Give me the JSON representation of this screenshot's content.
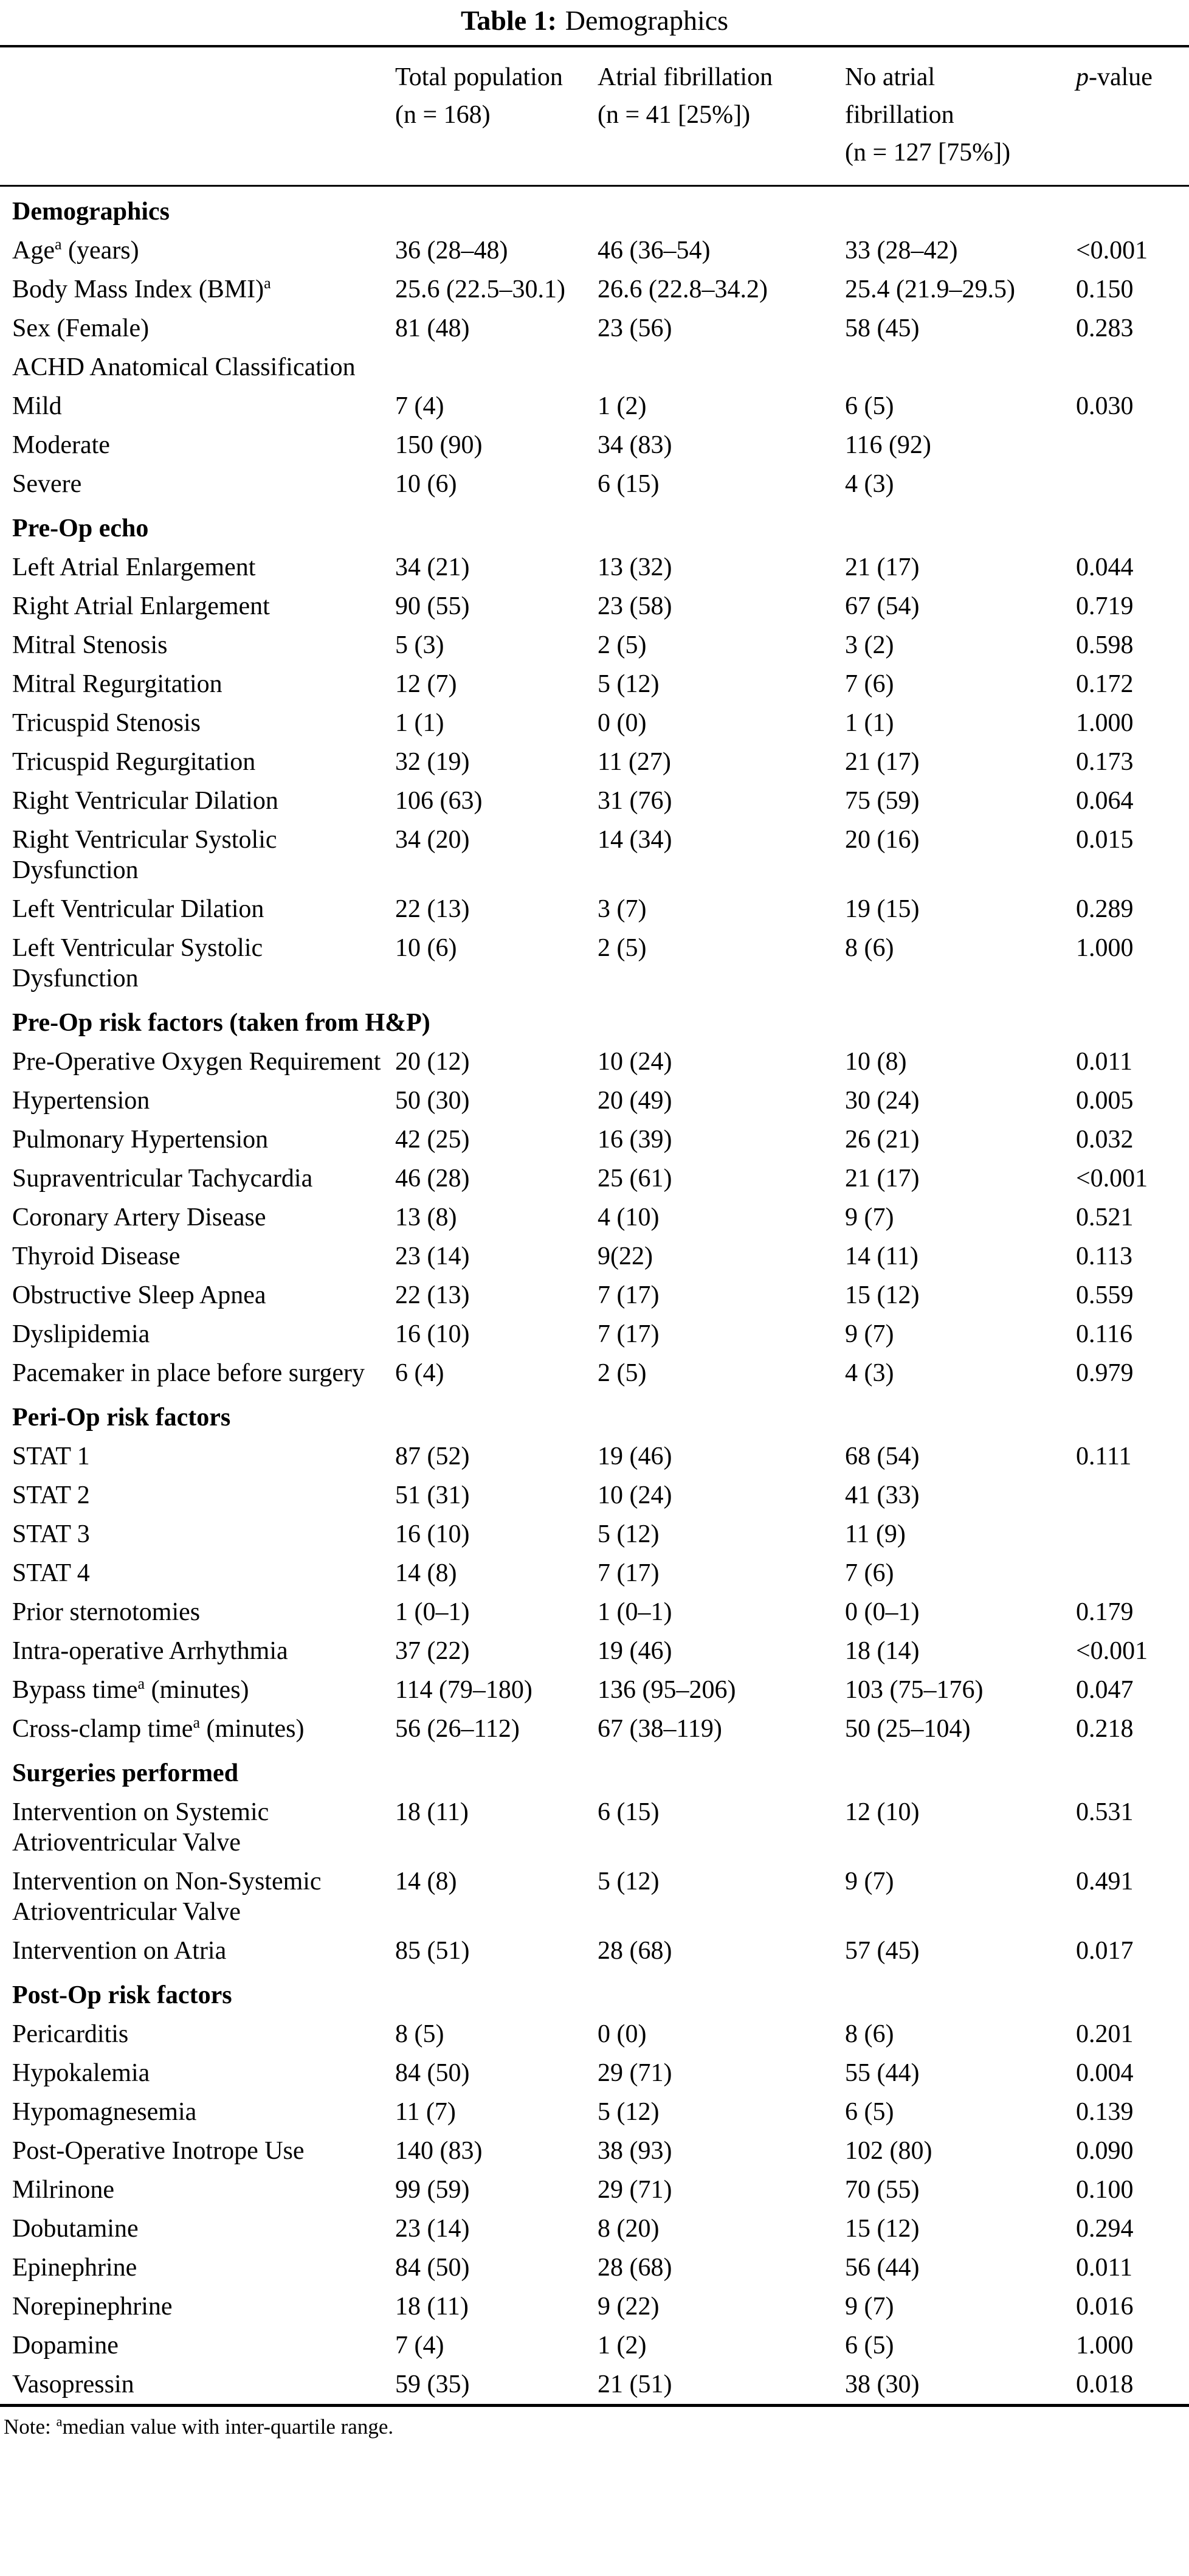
{
  "title": {
    "bold": "Table 1:",
    "rest": "Demographics"
  },
  "header": {
    "label_col": "",
    "total": [
      "Total population",
      "(n = 168)"
    ],
    "af": [
      "Atrial fibrillation",
      "(n = 41 [25%])"
    ],
    "no_af": [
      "No atrial",
      "fibrillation",
      "(n = 127 [75%])"
    ],
    "pvalue": {
      "italic": "p",
      "rest": "-value"
    }
  },
  "rows": [
    {
      "type": "section",
      "label": "Demographics"
    },
    {
      "type": "data",
      "label": "Age",
      "sup": "a",
      "label_post": " (years)",
      "values": [
        "36 (28–48)",
        "46 (36–54)",
        "33 (28–42)",
        "<0.001"
      ]
    },
    {
      "type": "data",
      "label": "Body Mass Index (BMI)",
      "sup": "a",
      "label_post": "",
      "values": [
        "25.6 (22.5–30.1)",
        "26.6 (22.8–34.2)",
        "25.4 (21.9–29.5)",
        "0.150"
      ]
    },
    {
      "type": "data",
      "label": "Sex (Female)",
      "values": [
        "81 (48)",
        "23 (56)",
        "58 (45)",
        "0.283"
      ]
    },
    {
      "type": "data",
      "label": "ACHD Anatomical Classification",
      "values": [
        "",
        "",
        "",
        ""
      ]
    },
    {
      "type": "data",
      "label": "Mild",
      "values": [
        "7 (4)",
        "1 (2)",
        "6 (5)",
        "0.030"
      ]
    },
    {
      "type": "data",
      "label": "Moderate",
      "values": [
        "150 (90)",
        "34 (83)",
        "116 (92)",
        ""
      ]
    },
    {
      "type": "data",
      "label": "Severe",
      "values": [
        "10 (6)",
        "6 (15)",
        "4 (3)",
        ""
      ]
    },
    {
      "type": "section",
      "label": "Pre-Op echo"
    },
    {
      "type": "data",
      "label": "Left Atrial Enlargement",
      "values": [
        "34 (21)",
        "13 (32)",
        "21 (17)",
        "0.044"
      ]
    },
    {
      "type": "data",
      "label": "Right Atrial Enlargement",
      "values": [
        "90 (55)",
        "23 (58)",
        "67 (54)",
        "0.719"
      ]
    },
    {
      "type": "data",
      "label": "Mitral Stenosis",
      "values": [
        "5 (3)",
        "2 (5)",
        "3 (2)",
        "0.598"
      ]
    },
    {
      "type": "data",
      "label": "Mitral Regurgitation",
      "values": [
        "12 (7)",
        "5 (12)",
        "7 (6)",
        "0.172"
      ]
    },
    {
      "type": "data",
      "label": "Tricuspid Stenosis",
      "values": [
        "1 (1)",
        "0 (0)",
        "1 (1)",
        "1.000"
      ]
    },
    {
      "type": "data",
      "label": "Tricuspid Regurgitation",
      "values": [
        "32 (19)",
        "11 (27)",
        "21 (17)",
        "0.173"
      ]
    },
    {
      "type": "data",
      "label": "Right Ventricular Dilation",
      "values": [
        "106 (63)",
        "31 (76)",
        "75 (59)",
        "0.064"
      ]
    },
    {
      "type": "data",
      "label": "Right Ventricular Systolic Dysfunction",
      "values": [
        "34 (20)",
        "14 (34)",
        "20 (16)",
        "0.015"
      ]
    },
    {
      "type": "data",
      "label": "Left Ventricular Dilation",
      "values": [
        "22 (13)",
        "3 (7)",
        "19 (15)",
        "0.289"
      ]
    },
    {
      "type": "data",
      "label": "Left Ventricular Systolic Dysfunction",
      "values": [
        "10 (6)",
        "2 (5)",
        "8 (6)",
        "1.000"
      ]
    },
    {
      "type": "section",
      "label": "Pre-Op risk factors (taken from H&P)"
    },
    {
      "type": "data",
      "label": "Pre-Operative Oxygen Requirement",
      "values": [
        "20 (12)",
        "10 (24)",
        "10 (8)",
        "0.011"
      ]
    },
    {
      "type": "data",
      "label": "Hypertension",
      "values": [
        "50 (30)",
        "20 (49)",
        "30 (24)",
        "0.005"
      ]
    },
    {
      "type": "data",
      "label": "Pulmonary Hypertension",
      "values": [
        "42 (25)",
        "16 (39)",
        "26 (21)",
        "0.032"
      ]
    },
    {
      "type": "data",
      "label": "Supraventricular Tachycardia",
      "values": [
        "46 (28)",
        "25 (61)",
        "21 (17)",
        "<0.001"
      ]
    },
    {
      "type": "data",
      "label": "Coronary Artery Disease",
      "values": [
        "13 (8)",
        "4 (10)",
        "9 (7)",
        "0.521"
      ]
    },
    {
      "type": "data",
      "label": "Thyroid Disease",
      "values": [
        "23 (14)",
        "9(22)",
        "14 (11)",
        "0.113"
      ]
    },
    {
      "type": "data",
      "label": "Obstructive Sleep Apnea",
      "values": [
        "22 (13)",
        "7 (17)",
        "15 (12)",
        "0.559"
      ]
    },
    {
      "type": "data",
      "label": "Dyslipidemia",
      "values": [
        "16 (10)",
        "7 (17)",
        "9 (7)",
        "0.116"
      ]
    },
    {
      "type": "data",
      "label": "Pacemaker in place before surgery",
      "values": [
        "6 (4)",
        "2 (5)",
        "4 (3)",
        "0.979"
      ]
    },
    {
      "type": "section",
      "label": "Peri-Op risk factors"
    },
    {
      "type": "data",
      "label": "STAT 1",
      "values": [
        "87 (52)",
        "19 (46)",
        "68 (54)",
        "0.111"
      ]
    },
    {
      "type": "data",
      "label": "STAT 2",
      "values": [
        "51 (31)",
        "10 (24)",
        "41 (33)",
        ""
      ]
    },
    {
      "type": "data",
      "label": "STAT 3",
      "values": [
        "16 (10)",
        "5 (12)",
        "11 (9)",
        ""
      ]
    },
    {
      "type": "data",
      "label": "STAT 4",
      "values": [
        "14 (8)",
        "7 (17)",
        "7 (6)",
        ""
      ]
    },
    {
      "type": "data",
      "label": "Prior sternotomies",
      "values": [
        "1 (0–1)",
        "1 (0–1)",
        "0 (0–1)",
        "0.179"
      ]
    },
    {
      "type": "data",
      "label": "Intra-operative Arrhythmia",
      "values": [
        "37 (22)",
        "19 (46)",
        "18 (14)",
        "<0.001"
      ]
    },
    {
      "type": "data",
      "label": "Bypass time",
      "sup": "a",
      "label_post": " (minutes)",
      "values": [
        "114 (79–180)",
        "136 (95–206)",
        "103 (75–176)",
        "0.047"
      ]
    },
    {
      "type": "data",
      "label": "Cross-clamp time",
      "sup": "a",
      "label_post": " (minutes)",
      "values": [
        "56 (26–112)",
        "67 (38–119)",
        "50 (25–104)",
        "0.218"
      ]
    },
    {
      "type": "section",
      "label": "Surgeries performed"
    },
    {
      "type": "data",
      "label": "Intervention on Systemic Atrioventricular Valve",
      "values": [
        "18 (11)",
        "6 (15)",
        "12 (10)",
        "0.531"
      ]
    },
    {
      "type": "data",
      "label": "Intervention on Non-Systemic Atrioventricular Valve",
      "values": [
        "14 (8)",
        "5 (12)",
        "9 (7)",
        "0.491"
      ]
    },
    {
      "type": "data",
      "label": "Intervention on Atria",
      "values": [
        "85 (51)",
        "28 (68)",
        "57 (45)",
        "0.017"
      ]
    },
    {
      "type": "section",
      "label": "Post-Op risk factors"
    },
    {
      "type": "data",
      "label": "Pericarditis",
      "values": [
        "8 (5)",
        "0 (0)",
        "8 (6)",
        "0.201"
      ]
    },
    {
      "type": "data",
      "label": "Hypokalemia",
      "values": [
        "84 (50)",
        "29 (71)",
        "55 (44)",
        "0.004"
      ]
    },
    {
      "type": "data",
      "label": "Hypomagnesemia",
      "values": [
        "11 (7)",
        "5 (12)",
        "6 (5)",
        "0.139"
      ]
    },
    {
      "type": "data",
      "label": "Post-Operative Inotrope Use",
      "values": [
        "140 (83)",
        "38 (93)",
        "102 (80)",
        "0.090"
      ]
    },
    {
      "type": "data",
      "label": "Milrinone",
      "values": [
        "99 (59)",
        "29 (71)",
        "70 (55)",
        "0.100"
      ]
    },
    {
      "type": "data",
      "label": "Dobutamine",
      "values": [
        "23 (14)",
        "8 (20)",
        "15 (12)",
        "0.294"
      ]
    },
    {
      "type": "data",
      "label": "Epinephrine",
      "values": [
        "84 (50)",
        "28 (68)",
        "56 (44)",
        "0.011"
      ]
    },
    {
      "type": "data",
      "label": "Norepinephrine",
      "values": [
        "18 (11)",
        "9 (22)",
        "9 (7)",
        "0.016"
      ]
    },
    {
      "type": "data",
      "label": "Dopamine",
      "values": [
        "7 (4)",
        "1 (2)",
        "6 (5)",
        "1.000"
      ]
    },
    {
      "type": "data",
      "label": "Vasopressin",
      "values": [
        "59 (35)",
        "21 (51)",
        "38 (30)",
        "0.018"
      ]
    }
  ],
  "note": {
    "label": "Note: ",
    "sup": "a",
    "text": "median value with inter-quartile range."
  }
}
